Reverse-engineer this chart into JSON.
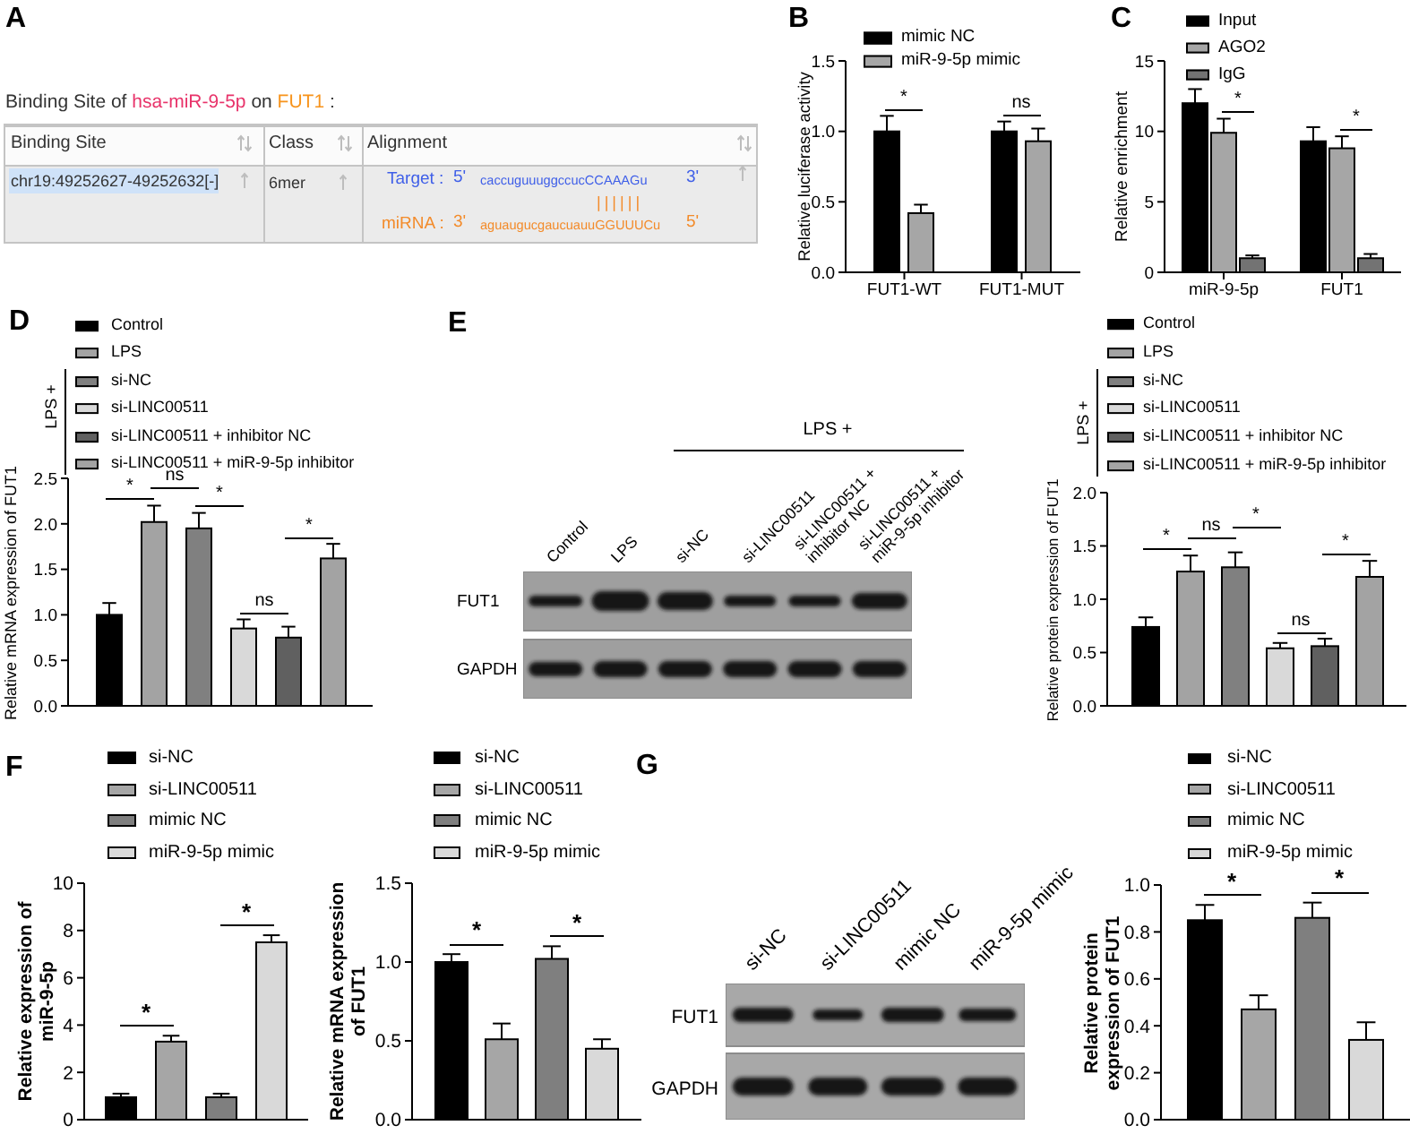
{
  "chart_data": [
    {
      "type": "other",
      "title": "A",
      "subtitle": "Binding Site of hsa-miR-9-5p on FUT1 :",
      "annotations": [
        "Binding Site",
        "Class",
        "Alignment",
        "chr19:49252627-49252632[-]",
        "6mer",
        "Target :",
        "5'",
        "caccuguuuggccucCCAAAGu",
        "3'",
        "||||||",
        "miRNA :",
        "3'",
        "aguaugucgaucuauuGGUUUCu",
        "5'"
      ]
    },
    {
      "type": "bar",
      "title": "B",
      "ylabel": "Relative luciferase activity",
      "categories": [
        "FUT1-WT",
        "FUT1-MUT"
      ],
      "series": [
        {
          "name": "mimic NC",
          "color": "#000000",
          "values": [
            1.0,
            1.0
          ],
          "errors": [
            0.11,
            0.07
          ]
        },
        {
          "name": "miR-9-5p mimic",
          "color": "#a6a6a6",
          "values": [
            0.42,
            0.93
          ],
          "errors": [
            0.06,
            0.09
          ]
        }
      ],
      "ylim": [
        0,
        1.5
      ],
      "yticks": [
        {
          "value": 0,
          "label": "0.0"
        },
        0.5,
        {
          "value": 1,
          "label": "1.0"
        },
        1.5
      ],
      "legend": "top",
      "annotations": [
        "*",
        "ns"
      ]
    },
    {
      "type": "bar",
      "title": "C",
      "ylabel": "Relative enrichment",
      "categories": [
        "miR-9-5p",
        "FUT1"
      ],
      "series": [
        {
          "name": "Input",
          "color": "#000000",
          "values": [
            12.0,
            9.3
          ],
          "errors": [
            1.0,
            1.0
          ]
        },
        {
          "name": "AGO2",
          "color": "#a6a6a6",
          "values": [
            9.9,
            8.8
          ],
          "errors": [
            1.0,
            0.85
          ]
        },
        {
          "name": "IgG",
          "color": "#737373",
          "values": [
            1.0,
            1.0
          ],
          "errors": [
            0.2,
            0.3
          ]
        }
      ],
      "ylim": [
        0,
        15
      ],
      "yticks": [
        0,
        5,
        10,
        15
      ],
      "legend": "top",
      "annotations": [
        "*",
        "*"
      ]
    },
    {
      "type": "bar",
      "title": "D",
      "ylabel": "Relative mRNA expression of FUT1",
      "legend_title": "LPS +",
      "categories": [
        null
      ],
      "series": [
        {
          "name": "Control",
          "color": "#000000",
          "values": [
            1.0
          ],
          "errors": [
            0.13
          ]
        },
        {
          "name": "LPS",
          "color": "#a3a3a3",
          "values": [
            2.02
          ],
          "errors": [
            0.18
          ]
        },
        {
          "name": "si-NC",
          "color": "#808080",
          "values": [
            1.95
          ],
          "errors": [
            0.17
          ]
        },
        {
          "name": "si-LINC00511",
          "color": "#d9d9d9",
          "values": [
            0.85
          ],
          "errors": [
            0.1
          ]
        },
        {
          "name": "si-LINC00511 + inhibitor NC",
          "color": "#606060",
          "values": [
            0.75
          ],
          "errors": [
            0.12
          ]
        },
        {
          "name": "si-LINC00511 + miR-9-5p inhibitor",
          "color": "#a3a3a3",
          "values": [
            1.62
          ],
          "errors": [
            0.16
          ]
        }
      ],
      "ylim": [
        0,
        2.5
      ],
      "yticks": [
        {
          "value": 0,
          "label": "0.0"
        },
        0.5,
        {
          "value": 1,
          "label": "1.0"
        },
        1.5,
        {
          "value": 2,
          "label": "2.0"
        },
        2.5
      ],
      "legend": "top",
      "annotations": [
        "*",
        "ns",
        "*",
        "ns",
        "*"
      ]
    },
    {
      "type": "other",
      "title": "E",
      "annotations": [
        "LPS +",
        "Control",
        "LPS",
        "si-NC",
        "si-LINC00511",
        "si-LINC00511 + inhibitor NC",
        "si-LINC00511 + miR-9-5p inhibitor",
        "FUT1",
        "GAPDH"
      ]
    },
    {
      "type": "bar",
      "ylabel": "Relative protein expression of FUT1",
      "legend_title": "LPS +",
      "categories": [
        null
      ],
      "series": [
        {
          "name": "Control",
          "color": "#000000",
          "values": [
            0.74
          ],
          "errors": [
            0.09
          ]
        },
        {
          "name": "LPS",
          "color": "#a3a3a3",
          "values": [
            1.26
          ],
          "errors": [
            0.15
          ]
        },
        {
          "name": "si-NC",
          "color": "#808080",
          "values": [
            1.3
          ],
          "errors": [
            0.14
          ]
        },
        {
          "name": "si-LINC00511",
          "color": "#d9d9d9",
          "values": [
            0.54
          ],
          "errors": [
            0.05
          ]
        },
        {
          "name": "si-LINC00511 + inhibitor NC",
          "color": "#606060",
          "values": [
            0.56
          ],
          "errors": [
            0.07
          ]
        },
        {
          "name": "si-LINC00511 + miR-9-5p inhibitor",
          "color": "#a3a3a3",
          "values": [
            1.21
          ],
          "errors": [
            0.15
          ]
        }
      ],
      "ylim": [
        0,
        2
      ],
      "yticks": [
        {
          "value": 0,
          "label": "0.0"
        },
        0.5,
        {
          "value": 1,
          "label": "1.0"
        },
        1.5,
        {
          "value": 2,
          "label": "2.0"
        }
      ],
      "legend": "top",
      "annotations": [
        "*",
        "ns",
        "*",
        "ns",
        "*"
      ]
    },
    {
      "type": "bar",
      "title": "F",
      "ylabel": "Relative expression of miR-9-5p",
      "categories": [
        null
      ],
      "series": [
        {
          "name": "si-NC",
          "color": "#000000",
          "values": [
            0.95
          ],
          "errors": [
            0.15
          ]
        },
        {
          "name": "si-LINC00511",
          "color": "#a6a6a6",
          "values": [
            3.3
          ],
          "errors": [
            0.25
          ]
        },
        {
          "name": "mimic NC",
          "color": "#7f7f7f",
          "values": [
            0.95
          ],
          "errors": [
            0.15
          ]
        },
        {
          "name": "miR-9-5p mimic",
          "color": "#d9d9d9",
          "values": [
            7.5
          ],
          "errors": [
            0.3
          ]
        }
      ],
      "ylim": [
        0,
        10
      ],
      "yticks": [
        0,
        2,
        4,
        6,
        8,
        10
      ],
      "legend": "top",
      "annotations": [
        "*",
        "*"
      ]
    },
    {
      "type": "bar",
      "ylabel": "Relative mRNA expression of FUT1",
      "categories": [
        null
      ],
      "series": [
        {
          "name": "si-NC",
          "color": "#000000",
          "values": [
            1.0
          ],
          "errors": [
            0.05
          ]
        },
        {
          "name": "si-LINC00511",
          "color": "#a6a6a6",
          "values": [
            0.51
          ],
          "errors": [
            0.1
          ]
        },
        {
          "name": "mimic NC",
          "color": "#7f7f7f",
          "values": [
            1.02
          ],
          "errors": [
            0.08
          ]
        },
        {
          "name": "miR-9-5p mimic",
          "color": "#d9d9d9",
          "values": [
            0.45
          ],
          "errors": [
            0.06
          ]
        }
      ],
      "ylim": [
        0,
        1.5
      ],
      "yticks": [
        {
          "value": 0,
          "label": "0.0"
        },
        0.5,
        {
          "value": 1,
          "label": "1.0"
        },
        1.5
      ],
      "legend": "top",
      "annotations": [
        "*",
        "*"
      ]
    },
    {
      "type": "other",
      "title": "G",
      "annotations": [
        "si-NC",
        "si-LINC00511",
        "mimic NC",
        "miR-9-5p mimic",
        "FUT1",
        "GAPDH"
      ]
    },
    {
      "type": "bar",
      "ylabel": "Relative protein expression of FUT1",
      "categories": [
        null
      ],
      "series": [
        {
          "name": "si-NC",
          "color": "#000000",
          "values": [
            0.85
          ],
          "errors": [
            0.065
          ]
        },
        {
          "name": "si-LINC00511",
          "color": "#a6a6a6",
          "values": [
            0.47
          ],
          "errors": [
            0.06
          ]
        },
        {
          "name": "mimic NC",
          "color": "#7f7f7f",
          "values": [
            0.86
          ],
          "errors": [
            0.065
          ]
        },
        {
          "name": "miR-9-5p mimic",
          "color": "#d9d9d9",
          "values": [
            0.34
          ],
          "errors": [
            0.075
          ]
        }
      ],
      "ylim": [
        0,
        1
      ],
      "yticks": [
        {
          "value": 0,
          "label": "0.0"
        },
        0.2,
        0.4,
        0.6,
        0.8,
        {
          "value": 1,
          "label": "1.0"
        }
      ],
      "legend": "top",
      "annotations": [
        "*",
        "*"
      ]
    }
  ]
}
